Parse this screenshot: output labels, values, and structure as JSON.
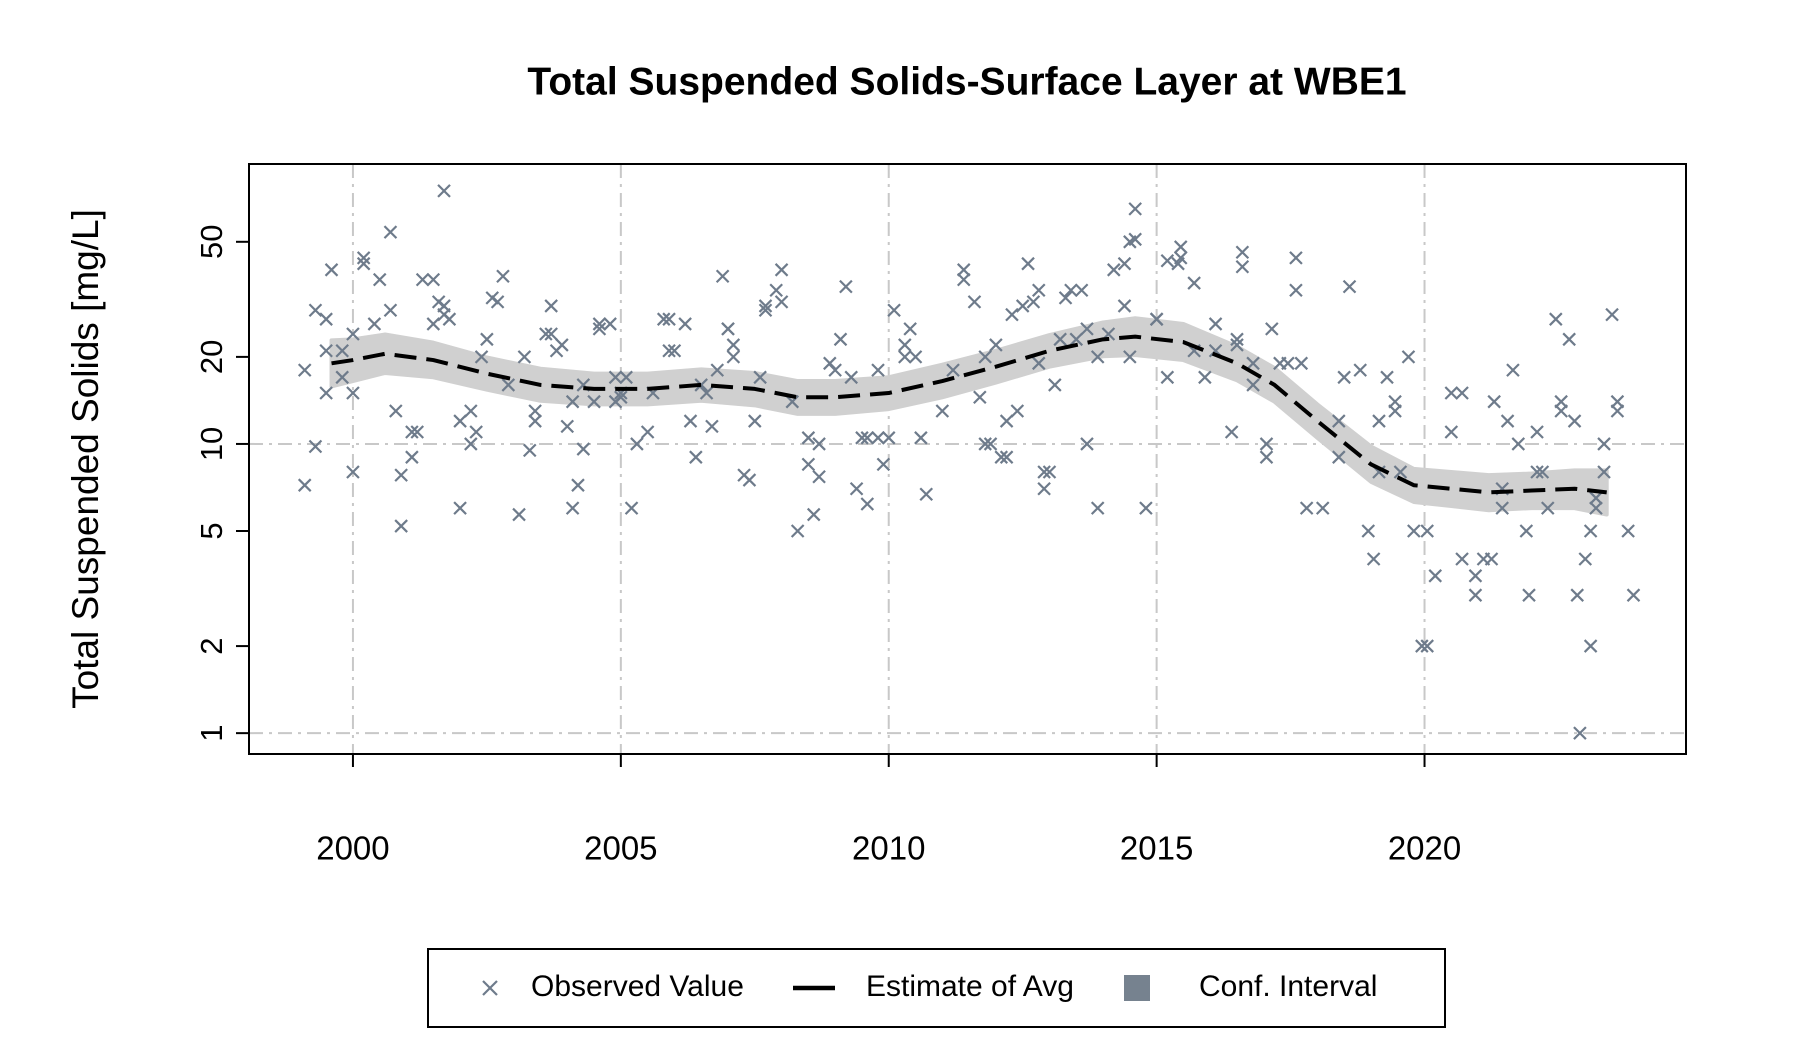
{
  "chart_data": {
    "type": "scatter",
    "title": "Total Suspended Solids-Surface Layer at WBE1",
    "ylabel": "Total Suspended Solids [mg/L]",
    "ylog": true,
    "xlim": [
      1998.06,
      2024.88
    ],
    "ylim": [
      0.847,
      92.9
    ],
    "xticks": [
      2000,
      2005,
      2010,
      2015,
      2020
    ],
    "yticks": [
      1,
      2,
      5,
      10,
      20,
      50
    ],
    "xgrid": true,
    "ygrid": [
      1,
      10
    ],
    "legend": "bottom",
    "series": [
      {
        "name": "Observed Value",
        "kind": "points",
        "color": "#6e7b8b",
        "x": [
          1999.1,
          1999.1,
          1999.3,
          1999.3,
          1999.5,
          1999.5,
          1999.5,
          1999.6,
          1999.8,
          1999.8,
          2000.0,
          2000.0,
          2000.0,
          2000.2,
          2000.2,
          2000.4,
          2000.5,
          2000.7,
          2000.7,
          2000.8,
          2000.9,
          2000.9,
          2001.1,
          2001.1,
          2001.2,
          2001.3,
          2001.5,
          2001.5,
          2001.6,
          2001.7,
          2001.7,
          2001.7,
          2001.8,
          2002.0,
          2002.0,
          2002.2,
          2002.2,
          2002.3,
          2002.4,
          2002.5,
          2002.6,
          2002.7,
          2002.8,
          2002.9,
          2003.1,
          2003.2,
          2003.3,
          2003.4,
          2003.4,
          2003.6,
          2003.7,
          2003.7,
          2003.8,
          2003.9,
          2004.0,
          2004.1,
          2004.1,
          2004.2,
          2004.3,
          2004.3,
          2004.5,
          2004.6,
          2004.6,
          2004.8,
          2004.9,
          2004.9,
          2005.0,
          2005.0,
          2005.1,
          2005.2,
          2005.3,
          2005.5,
          2005.6,
          2005.8,
          2005.9,
          2005.9,
          2006.0,
          2006.2,
          2006.3,
          2006.4,
          2006.5,
          2006.6,
          2006.7,
          2006.8,
          2006.9,
          2007.0,
          2007.0,
          2007.1,
          2007.1,
          2007.3,
          2007.4,
          2007.5,
          2007.6,
          2007.7,
          2007.7,
          2007.9,
          2008.0,
          2008.0,
          2008.2,
          2008.3,
          2008.5,
          2008.5,
          2008.6,
          2008.7,
          2008.7,
          2008.9,
          2009.0,
          2009.1,
          2009.2,
          2009.3,
          2009.4,
          2009.5,
          2009.6,
          2009.6,
          2009.8,
          2009.8,
          2009.9,
          2010.0,
          2010.1,
          2010.3,
          2010.3,
          2010.4,
          2010.5,
          2010.6,
          2010.7,
          2011.0,
          2011.2,
          2011.4,
          2011.4,
          2011.6,
          2011.7,
          2011.8,
          2011.8,
          2011.9,
          2012.0,
          2012.1,
          2012.2,
          2012.2,
          2012.3,
          2012.4,
          2012.5,
          2012.6,
          2012.7,
          2012.8,
          2012.8,
          2012.9,
          2012.9,
          2013.0,
          2013.1,
          2013.2,
          2013.3,
          2013.4,
          2013.5,
          2013.6,
          2013.7,
          2013.7,
          2013.9,
          2013.9,
          2014.1,
          2014.2,
          2014.4,
          2014.4,
          2014.5,
          2014.5,
          2014.6,
          2014.6,
          2014.8,
          2015.0,
          2015.0,
          2015.2,
          2015.2,
          2015.4,
          2015.45,
          2015.45,
          2015.7,
          2015.7,
          2015.9,
          2016.1,
          2016.1,
          2016.4,
          2016.5,
          2016.5,
          2016.6,
          2016.6,
          2016.8,
          2016.8,
          2017.05,
          2017.05,
          2017.15,
          2017.3,
          2017.45,
          2017.6,
          2017.6,
          2017.7,
          2017.8,
          2018.1,
          2018.4,
          2018.4,
          2018.5,
          2018.6,
          2018.8,
          2018.95,
          2019.05,
          2019.15,
          2019.15,
          2019.3,
          2019.45,
          2019.45,
          2019.55,
          2019.7,
          2019.8,
          2019.95,
          2020.05,
          2020.05,
          2020.2,
          2020.5,
          2020.5,
          2020.7,
          2020.7,
          2020.95,
          2020.95,
          2021.1,
          2021.25,
          2021.3,
          2021.45,
          2021.45,
          2021.55,
          2021.65,
          2021.75,
          2021.9,
          2021.95,
          2022.1,
          2022.1,
          2022.2,
          2022.3,
          2022.45,
          2022.55,
          2022.55,
          2022.7,
          2022.8,
          2022.85,
          2022.9,
          2023.0,
          2023.1,
          2023.1,
          2023.2,
          2023.2,
          2023.35,
          2023.35,
          2023.5,
          2023.6,
          2023.6,
          2023.8,
          2023.9
        ],
        "values": [
          18,
          7.2,
          9.8,
          29,
          21,
          15,
          27,
          40,
          21,
          17,
          8,
          15,
          24,
          42,
          44,
          26,
          37,
          54,
          29,
          13,
          5.2,
          7.8,
          9,
          11,
          11,
          37,
          37,
          26,
          31,
          75,
          28,
          30,
          27,
          6,
          12,
          10,
          13,
          11,
          20,
          23,
          32,
          31,
          38,
          16,
          5.7,
          20,
          9.5,
          13,
          12,
          24,
          30,
          24,
          21,
          22,
          11.5,
          6,
          14,
          7.2,
          16,
          9.6,
          14,
          26,
          25,
          26,
          17,
          14,
          15,
          14.5,
          17,
          6,
          10,
          11,
          15,
          27,
          21,
          27,
          21,
          26,
          12,
          9,
          16,
          15,
          11.5,
          18,
          38,
          25,
          25,
          20,
          22,
          7.8,
          7.5,
          12,
          17,
          29,
          30,
          34,
          40,
          31,
          14,
          5,
          8.5,
          10.5,
          5.7,
          7.7,
          10,
          19,
          18,
          23,
          35,
          17,
          7,
          10.5,
          6.2,
          10.5,
          18,
          10.5,
          8.5,
          10.5,
          29,
          20,
          22,
          25,
          20,
          10.5,
          6.7,
          13,
          18,
          37,
          40,
          31,
          14.5,
          10,
          20,
          10,
          22,
          9,
          9,
          12,
          28,
          13,
          30,
          42,
          31,
          34,
          19,
          8,
          7,
          8,
          16,
          23,
          32,
          34,
          23,
          34,
          25,
          10,
          6,
          20,
          24,
          40,
          30,
          42,
          50,
          20,
          65,
          51,
          6,
          27,
          27,
          43,
          17,
          42,
          48,
          44,
          36,
          21,
          17,
          26,
          21,
          11,
          22,
          23,
          41,
          46,
          16,
          19,
          9,
          10,
          25,
          19,
          19,
          34,
          44,
          19,
          6,
          6,
          9,
          12,
          17,
          35,
          18,
          5,
          4,
          8,
          12,
          17,
          13,
          14,
          8,
          20,
          5,
          2,
          2,
          5,
          3.5,
          15,
          11,
          15,
          4,
          3,
          3.5,
          4,
          4,
          14,
          6,
          7,
          12,
          18,
          10,
          5,
          3,
          11,
          8,
          8,
          6,
          27,
          14,
          13,
          23,
          12,
          3,
          1,
          4,
          2,
          5,
          6,
          6.5,
          8,
          10,
          28,
          14,
          13,
          5,
          3
        ]
      },
      {
        "name": "Estimate of Avg",
        "kind": "line",
        "color": "#000000",
        "x": [
          1999.6,
          2000.0,
          2000.6,
          2001.5,
          2002.5,
          2003.5,
          2004.5,
          2005.5,
          2006.5,
          2007.5,
          2008.3,
          2009.0,
          2010.0,
          2011.0,
          2012.0,
          2013.0,
          2014.0,
          2014.6,
          2015.5,
          2016.5,
          2017.2,
          2018.0,
          2019.0,
          2019.8,
          2020.5,
          2021.2,
          2022.0,
          2022.8,
          2023.4
        ],
        "values": [
          19,
          19.5,
          20.5,
          19.5,
          17.5,
          16,
          15.5,
          15.5,
          16,
          15.5,
          14.5,
          14.5,
          15,
          16.5,
          18.5,
          21,
          23,
          23.5,
          22.5,
          19,
          16,
          12,
          8.5,
          7.2,
          7,
          6.8,
          6.9,
          7,
          6.8
        ]
      },
      {
        "name": "Conf. Interval",
        "kind": "band",
        "color": "#d0d0d0",
        "legend_color": "#76828f",
        "x": [
          1999.6,
          2000.0,
          2000.6,
          2001.5,
          2002.5,
          2003.5,
          2004.5,
          2005.5,
          2006.5,
          2007.5,
          2008.3,
          2009.0,
          2010.0,
          2011.0,
          2012.0,
          2013.0,
          2014.0,
          2014.6,
          2015.5,
          2016.5,
          2017.2,
          2018.0,
          2019.0,
          2019.8,
          2020.5,
          2021.2,
          2022.0,
          2022.8,
          2023.4
        ],
        "lower": [
          15.8,
          16.5,
          17.6,
          17,
          15.4,
          14.1,
          13.7,
          13.7,
          14.1,
          13.6,
          12.7,
          12.7,
          13.2,
          14.5,
          16.3,
          18.5,
          20.1,
          20.3,
          19.5,
          16.6,
          14,
          10.5,
          7.4,
          6.3,
          6.1,
          5.9,
          6,
          6,
          5.7
        ],
        "upper": [
          22.8,
          23,
          23.9,
          22.4,
          19.9,
          18.2,
          17.5,
          17.5,
          18.1,
          17.6,
          16.5,
          16.5,
          17,
          18.8,
          21,
          23.8,
          26.3,
          27.2,
          26,
          21.7,
          18.3,
          13.7,
          9.8,
          8.2,
          8,
          7.8,
          7.9,
          8.1,
          8.1
        ]
      }
    ]
  }
}
